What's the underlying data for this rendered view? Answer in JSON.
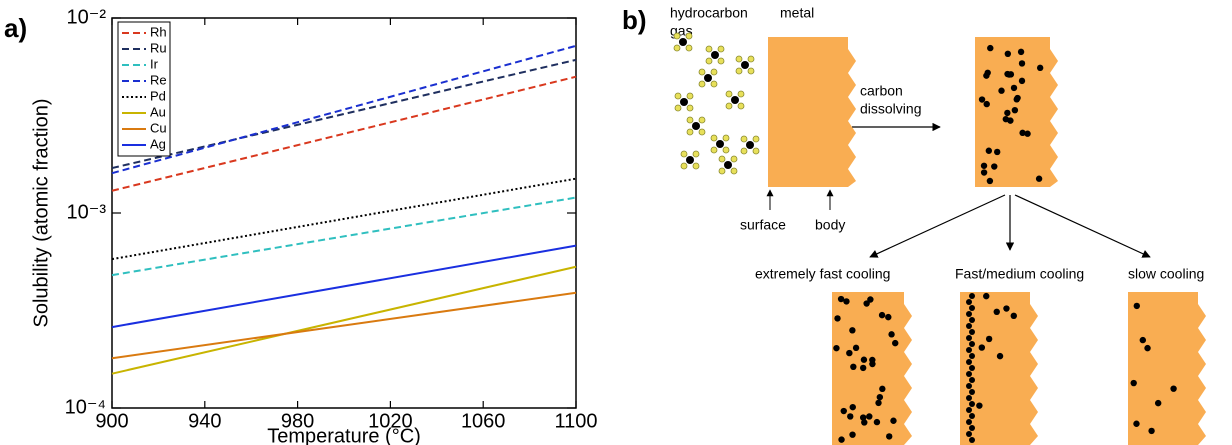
{
  "panels": [
    "a)",
    "b)"
  ],
  "chart_data": {
    "type": "line",
    "x_label": "Temperature (°C)",
    "y_label": "Solubility (atomic fraction)",
    "x": [
      900,
      1100
    ],
    "xlim": [
      900,
      1100
    ],
    "xticks": [
      900,
      940,
      980,
      1020,
      1060,
      1100
    ],
    "ylim": [
      0.0001,
      0.01
    ],
    "yticks": [
      {
        "value": 0.0001,
        "label": "10⁻⁴"
      },
      {
        "value": 0.001,
        "label": "10⁻³"
      },
      {
        "value": 0.01,
        "label": "10⁻²"
      }
    ],
    "y_scale": "log",
    "legend": "upper left",
    "series": [
      {
        "name": "Rh",
        "color": "#d9381e",
        "style": "dashed",
        "values": [
          0.0013,
          0.005
        ]
      },
      {
        "name": "Ru",
        "color": "#1f2f5f",
        "style": "dashed",
        "values": [
          0.0017,
          0.0061
        ]
      },
      {
        "name": "Ir",
        "color": "#2fbfbf",
        "style": "dashed",
        "values": [
          0.00048,
          0.0012
        ]
      },
      {
        "name": "Re",
        "color": "#1a2fd0",
        "style": "dashed",
        "values": [
          0.0016,
          0.0072
        ]
      },
      {
        "name": "Pd",
        "color": "#000000",
        "style": "dotted",
        "values": [
          0.00058,
          0.0015
        ]
      },
      {
        "name": "Au",
        "color": "#c8b400",
        "style": "solid",
        "values": [
          0.00015,
          0.00053
        ]
      },
      {
        "name": "Cu",
        "color": "#d97a10",
        "style": "solid",
        "values": [
          0.00018,
          0.00039
        ]
      },
      {
        "name": "Ag",
        "color": "#1a2fe0",
        "style": "solid",
        "values": [
          0.00026,
          0.00068
        ]
      }
    ]
  },
  "diagram": {
    "gas_label": [
      "hydrocarbon",
      "gas"
    ],
    "metal_label": "metal",
    "step_label": [
      "carbon",
      "dissolving"
    ],
    "surface_label": "surface",
    "body_label": "body",
    "outcomes": [
      "extremely fast cooling",
      "Fast/medium cooling",
      "slow cooling"
    ]
  }
}
